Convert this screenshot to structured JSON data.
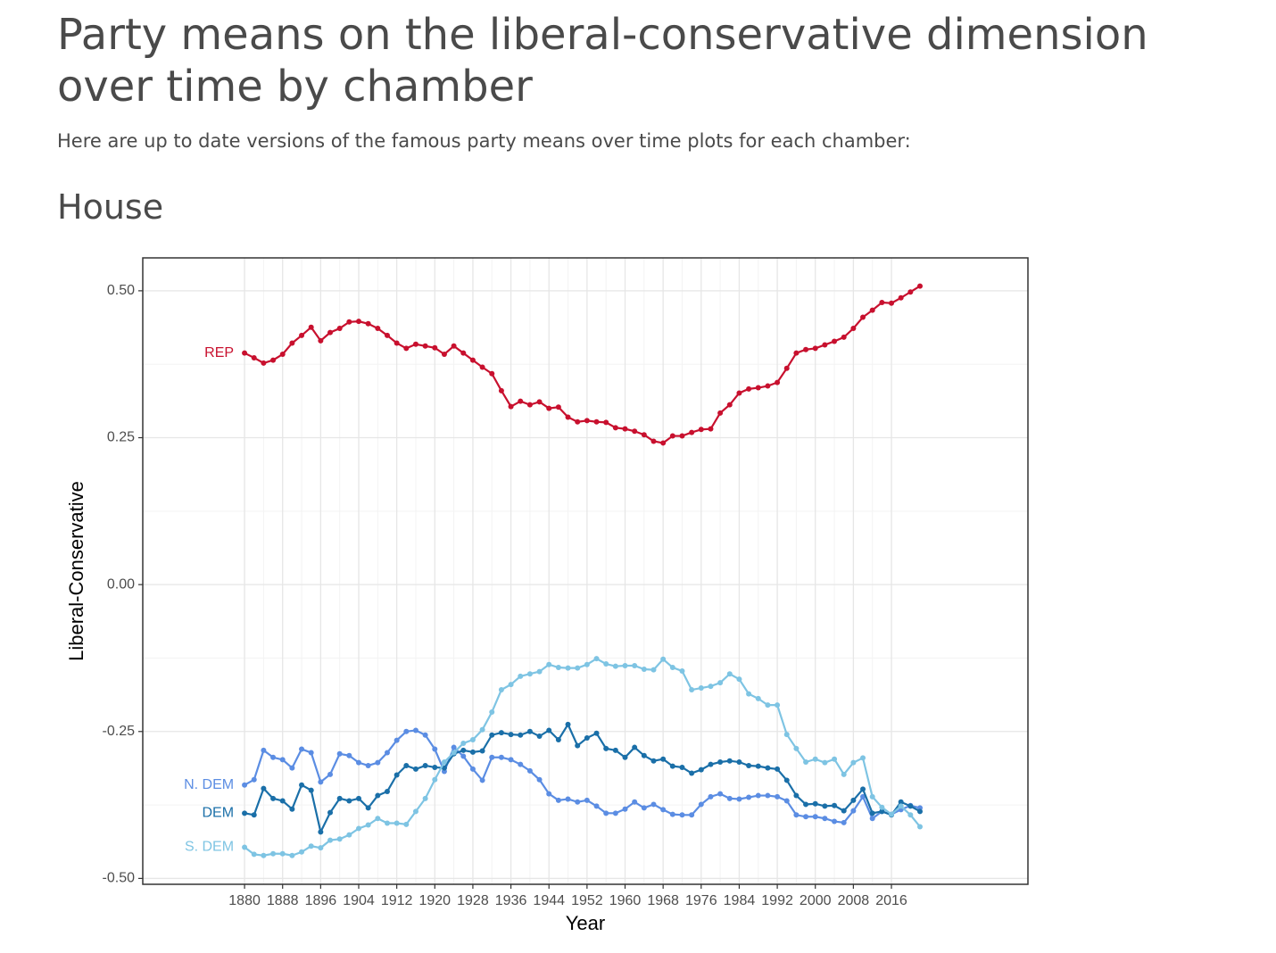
{
  "header": {
    "title": "Party means on the liberal-conservative dimension over time by chamber",
    "subtitle": "Here are up to date versions of the famous party means over time plots for each chamber:"
  },
  "section": {
    "heading": "House"
  },
  "chart_data": {
    "type": "line",
    "x_label": "Year",
    "y_label": "Liberal-Conservative",
    "x": [
      1880,
      1882,
      1884,
      1886,
      1888,
      1890,
      1892,
      1894,
      1896,
      1898,
      1900,
      1902,
      1904,
      1906,
      1908,
      1910,
      1912,
      1914,
      1916,
      1918,
      1920,
      1922,
      1924,
      1926,
      1928,
      1930,
      1932,
      1934,
      1936,
      1938,
      1940,
      1942,
      1944,
      1946,
      1948,
      1950,
      1952,
      1954,
      1956,
      1958,
      1960,
      1962,
      1964,
      1966,
      1968,
      1970,
      1972,
      1974,
      1976,
      1978,
      1980,
      1982,
      1984,
      1986,
      1988,
      1990,
      1992,
      1994,
      1996,
      1998,
      2000,
      2002,
      2004,
      2006,
      2008,
      2010,
      2012,
      2014,
      2016,
      2018,
      2020,
      2022
    ],
    "xlim": [
      1858.6,
      2044.7
    ],
    "xticks": [
      1880,
      1888,
      1896,
      1904,
      1912,
      1920,
      1928,
      1936,
      1944,
      1952,
      1960,
      1968,
      1976,
      1984,
      1992,
      2000,
      2008,
      2016
    ],
    "ylim": [
      -0.51,
      0.556
    ],
    "yticks": [
      {
        "value": 0.5,
        "label": "0.50"
      },
      {
        "value": 0.25,
        "label": "0.25"
      },
      {
        "value": 0,
        "label": "0.00"
      },
      {
        "value": -0.25,
        "label": "-0.25"
      },
      {
        "value": -0.5,
        "label": "-0.50"
      }
    ],
    "grid": true,
    "series": [
      {
        "name": "REP",
        "color": "#c8102e",
        "values": [
          0.394,
          0.386,
          0.377,
          0.382,
          0.392,
          0.411,
          0.424,
          0.438,
          0.415,
          0.429,
          0.436,
          0.447,
          0.448,
          0.444,
          0.436,
          0.424,
          0.411,
          0.402,
          0.409,
          0.406,
          0.403,
          0.392,
          0.406,
          0.394,
          0.382,
          0.37,
          0.359,
          0.33,
          0.303,
          0.312,
          0.306,
          0.311,
          0.3,
          0.302,
          0.285,
          0.277,
          0.279,
          0.277,
          0.276,
          0.267,
          0.265,
          0.261,
          0.255,
          0.244,
          0.241,
          0.253,
          0.253,
          0.259,
          0.264,
          0.265,
          0.292,
          0.306,
          0.326,
          0.333,
          0.335,
          0.338,
          0.344,
          0.368,
          0.394,
          0.4,
          0.402,
          0.408,
          0.414,
          0.421,
          0.436,
          0.455,
          0.467,
          0.48,
          0.479,
          0.488,
          0.498,
          0.508
        ]
      },
      {
        "name": "N. DEM",
        "color": "#5b8de3",
        "values": [
          -0.341,
          -0.332,
          -0.282,
          -0.294,
          -0.298,
          -0.312,
          -0.28,
          -0.286,
          -0.336,
          -0.323,
          -0.288,
          -0.291,
          -0.303,
          -0.308,
          -0.303,
          -0.286,
          -0.265,
          -0.25,
          -0.248,
          -0.256,
          -0.28,
          -0.318,
          -0.277,
          -0.292,
          -0.314,
          -0.333,
          -0.294,
          -0.294,
          -0.298,
          -0.306,
          -0.317,
          -0.332,
          -0.356,
          -0.367,
          -0.365,
          -0.37,
          -0.367,
          -0.377,
          -0.389,
          -0.389,
          -0.382,
          -0.37,
          -0.38,
          -0.374,
          -0.383,
          -0.391,
          -0.392,
          -0.392,
          -0.374,
          -0.361,
          -0.356,
          -0.364,
          -0.365,
          -0.362,
          -0.359,
          -0.359,
          -0.361,
          -0.368,
          -0.392,
          -0.395,
          -0.395,
          -0.398,
          -0.403,
          -0.405,
          -0.385,
          -0.361,
          -0.398,
          -0.386,
          -0.391,
          -0.383,
          -0.376,
          -0.38
        ]
      },
      {
        "name": "DEM",
        "color": "#1a6fa8",
        "values": [
          -0.389,
          -0.392,
          -0.347,
          -0.364,
          -0.368,
          -0.382,
          -0.341,
          -0.35,
          -0.421,
          -0.388,
          -0.364,
          -0.368,
          -0.364,
          -0.38,
          -0.359,
          -0.352,
          -0.324,
          -0.308,
          -0.314,
          -0.308,
          -0.311,
          -0.312,
          -0.288,
          -0.282,
          -0.285,
          -0.283,
          -0.256,
          -0.252,
          -0.255,
          -0.256,
          -0.25,
          -0.258,
          -0.248,
          -0.264,
          -0.238,
          -0.274,
          -0.261,
          -0.253,
          -0.279,
          -0.282,
          -0.294,
          -0.277,
          -0.291,
          -0.3,
          -0.297,
          -0.309,
          -0.311,
          -0.321,
          -0.315,
          -0.306,
          -0.302,
          -0.3,
          -0.302,
          -0.308,
          -0.309,
          -0.312,
          -0.314,
          -0.333,
          -0.359,
          -0.374,
          -0.373,
          -0.377,
          -0.376,
          -0.385,
          -0.367,
          -0.348,
          -0.389,
          -0.386,
          -0.392,
          -0.37,
          -0.377,
          -0.386
        ]
      },
      {
        "name": "S. DEM",
        "color": "#7ec4e3",
        "values": [
          -0.447,
          -0.459,
          -0.461,
          -0.458,
          -0.458,
          -0.461,
          -0.455,
          -0.445,
          -0.448,
          -0.435,
          -0.433,
          -0.426,
          -0.415,
          -0.409,
          -0.398,
          -0.406,
          -0.406,
          -0.408,
          -0.386,
          -0.364,
          -0.332,
          -0.302,
          -0.286,
          -0.27,
          -0.264,
          -0.247,
          -0.217,
          -0.179,
          -0.17,
          -0.156,
          -0.152,
          -0.148,
          -0.136,
          -0.141,
          -0.142,
          -0.142,
          -0.136,
          -0.126,
          -0.135,
          -0.139,
          -0.138,
          -0.138,
          -0.144,
          -0.145,
          -0.127,
          -0.141,
          -0.147,
          -0.179,
          -0.176,
          -0.173,
          -0.167,
          -0.152,
          -0.161,
          -0.186,
          -0.194,
          -0.205,
          -0.205,
          -0.255,
          -0.279,
          -0.302,
          -0.297,
          -0.303,
          -0.297,
          -0.323,
          -0.303,
          -0.295,
          -0.361,
          -0.379,
          -0.391,
          -0.377,
          -0.392,
          -0.412
        ]
      }
    ]
  }
}
